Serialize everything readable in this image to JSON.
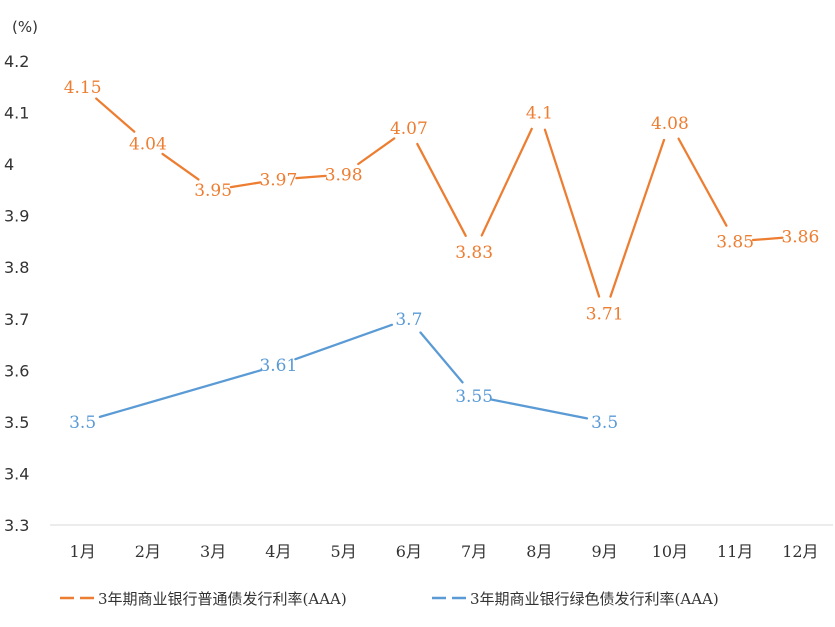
{
  "chart_data": {
    "type": "line",
    "y_unit": "(%)",
    "categories": [
      "1月",
      "2月",
      "3月",
      "4月",
      "5月",
      "6月",
      "7月",
      "8月",
      "9月",
      "10月",
      "11月",
      "12月"
    ],
    "ylim": [
      3.3,
      4.2
    ],
    "yticks": [
      3.3,
      3.4,
      3.5,
      3.6,
      3.7,
      3.8,
      3.9,
      4,
      4.1,
      4.2
    ],
    "grid": false,
    "legend_position": "bottom",
    "series": [
      {
        "name": "3年期商业银行普通债发行利率(AAA)",
        "color": "#ED7D31",
        "values": [
          4.15,
          4.04,
          3.95,
          3.97,
          3.98,
          4.07,
          3.83,
          4.1,
          3.71,
          4.08,
          3.85,
          3.86
        ]
      },
      {
        "name": "3年期商业银行绿色债发行利率(AAA)",
        "color": "#5B9BD5",
        "values": [
          3.5,
          null,
          null,
          3.61,
          null,
          3.7,
          3.55,
          null,
          3.5,
          null,
          null,
          null
        ]
      }
    ]
  }
}
